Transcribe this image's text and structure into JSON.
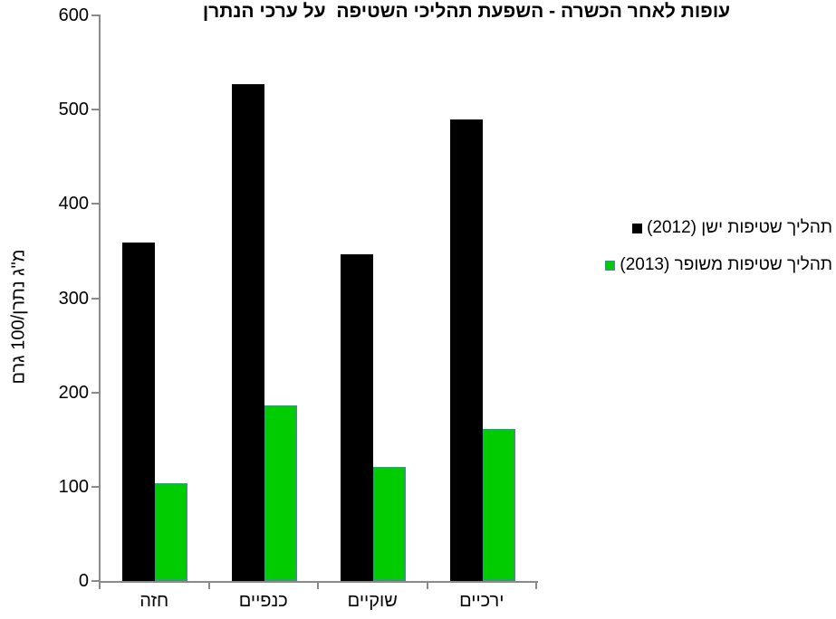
{
  "chart_data": {
    "type": "bar",
    "title": "עופות לאחר הכשרה - השפעת תהליכי השטיפה  על ערכי הנתרן",
    "ylabel": "מ\"ג נתרן/100 גרם",
    "xlabel": "",
    "categories": [
      "חזה",
      "כנפיים",
      "שוקיים",
      "ירכיים"
    ],
    "series": [
      {
        "name": "תהליך שטיפות ישן (2012)",
        "values": [
          359,
          527,
          347,
          490
        ],
        "color": "#000000",
        "edge": "#000000"
      },
      {
        "name": "תהליך שטיפות משופר (2013)",
        "values": [
          104,
          186,
          121,
          161
        ],
        "color": "#00CC00",
        "edge": "#4F81BD"
      }
    ],
    "ylim": [
      0,
      600
    ],
    "yticks": [
      0,
      100,
      200,
      300,
      400,
      500,
      600
    ],
    "grid": false,
    "legend_position": "right",
    "axis_color": "#8a8a8a",
    "text_direction": "rtl"
  }
}
